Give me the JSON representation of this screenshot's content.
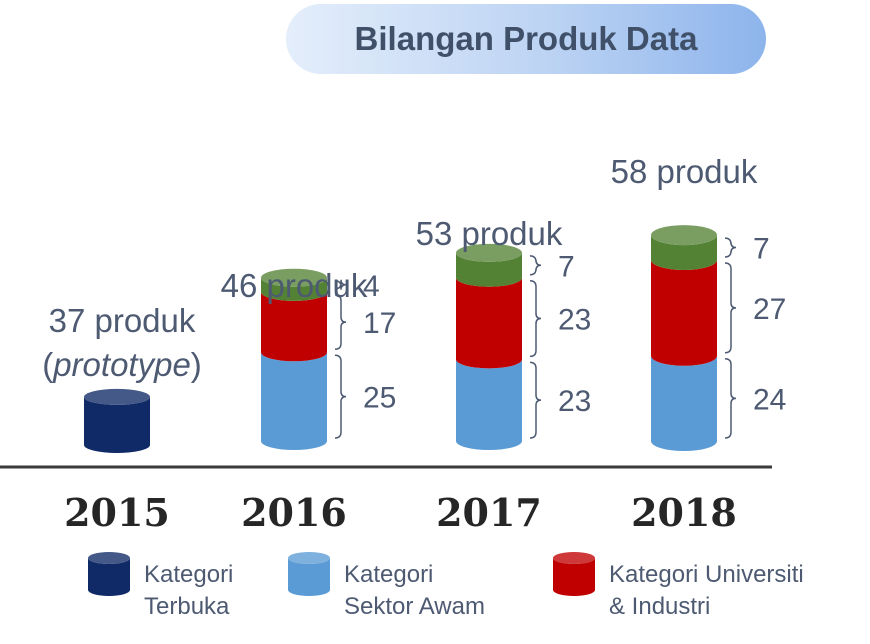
{
  "title": "Bilangan Produk Data",
  "chart_data": {
    "type": "bar",
    "stacked": true,
    "categories": [
      "2015",
      "2016",
      "2017",
      "2018"
    ],
    "totals": [
      {
        "value": "37 produk",
        "note": "(prototype)"
      },
      {
        "value": "46 produk"
      },
      {
        "value": "53 produk"
      },
      {
        "value": "58 produk"
      }
    ],
    "series": [
      {
        "name": "Kategori Terbuka",
        "color": "#0f2a66",
        "values": [
          37,
          0,
          0,
          0
        ]
      },
      {
        "name": "Kategori Sektor Awam",
        "color": "#5b9bd5",
        "values": [
          0,
          25,
          23,
          24
        ]
      },
      {
        "name": "Kategori Universiti & Industri",
        "color": "#c00000",
        "values": [
          0,
          17,
          23,
          27
        ]
      },
      {
        "name": "",
        "color": "#548235",
        "values": [
          0,
          4,
          7,
          7
        ]
      }
    ]
  },
  "legend": [
    {
      "line1": "Kategori",
      "line2": "Terbuka",
      "color": "#0f2a66"
    },
    {
      "line1": "Kategori",
      "line2": "Sektor Awam",
      "color": "#5b9bd5"
    },
    {
      "line1": "Kategori Universiti",
      "line2": "& Industri",
      "color": "#c00000"
    }
  ]
}
